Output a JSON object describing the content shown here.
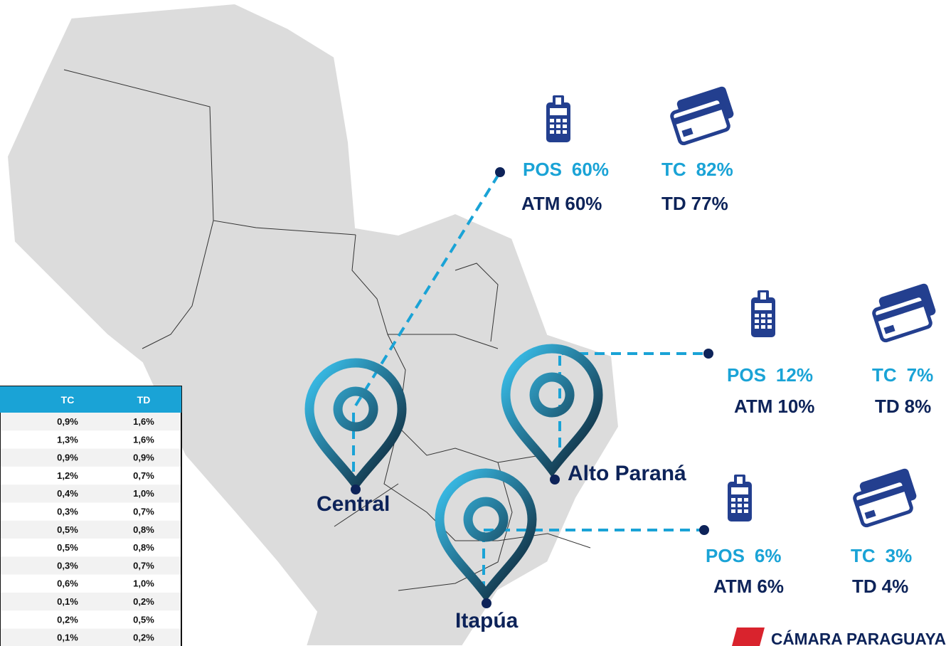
{
  "regions": [
    {
      "name": "Central",
      "pos": {
        "label": "POS",
        "value": "60%"
      },
      "atm": {
        "label": "ATM",
        "value": "60%"
      },
      "tc": {
        "label": "TC",
        "value": "82%"
      },
      "td": {
        "label": "TD",
        "value": "77%"
      }
    },
    {
      "name": "Alto Paraná",
      "pos": {
        "label": "POS",
        "value": "12%"
      },
      "atm": {
        "label": "ATM",
        "value": "10%"
      },
      "tc": {
        "label": "TC",
        "value": "7%"
      },
      "td": {
        "label": "TD",
        "value": "8%"
      }
    },
    {
      "name": "Itapúa",
      "pos": {
        "label": "POS",
        "value": "6%"
      },
      "atm": {
        "label": "ATM",
        "value": "6%"
      },
      "tc": {
        "label": "TC",
        "value": "3%"
      },
      "td": {
        "label": "TD",
        "value": "4%"
      }
    }
  ],
  "table": {
    "header": [
      "TC",
      "TD"
    ],
    "rows": [
      [
        "0,9%",
        "1,6%"
      ],
      [
        "1,3%",
        "1,6%"
      ],
      [
        "0,9%",
        "0,9%"
      ],
      [
        "1,2%",
        "0,7%"
      ],
      [
        "0,4%",
        "1,0%"
      ],
      [
        "0,3%",
        "0,7%"
      ],
      [
        "0,5%",
        "0,8%"
      ],
      [
        "0,5%",
        "0,8%"
      ],
      [
        "0,3%",
        "0,7%"
      ],
      [
        "0,6%",
        "1,0%"
      ],
      [
        "0,1%",
        "0,2%"
      ],
      [
        "0,2%",
        "0,5%"
      ],
      [
        "0,1%",
        "0,2%"
      ]
    ]
  },
  "logo": {
    "text": "CÁMARA PARAGUAYA"
  }
}
